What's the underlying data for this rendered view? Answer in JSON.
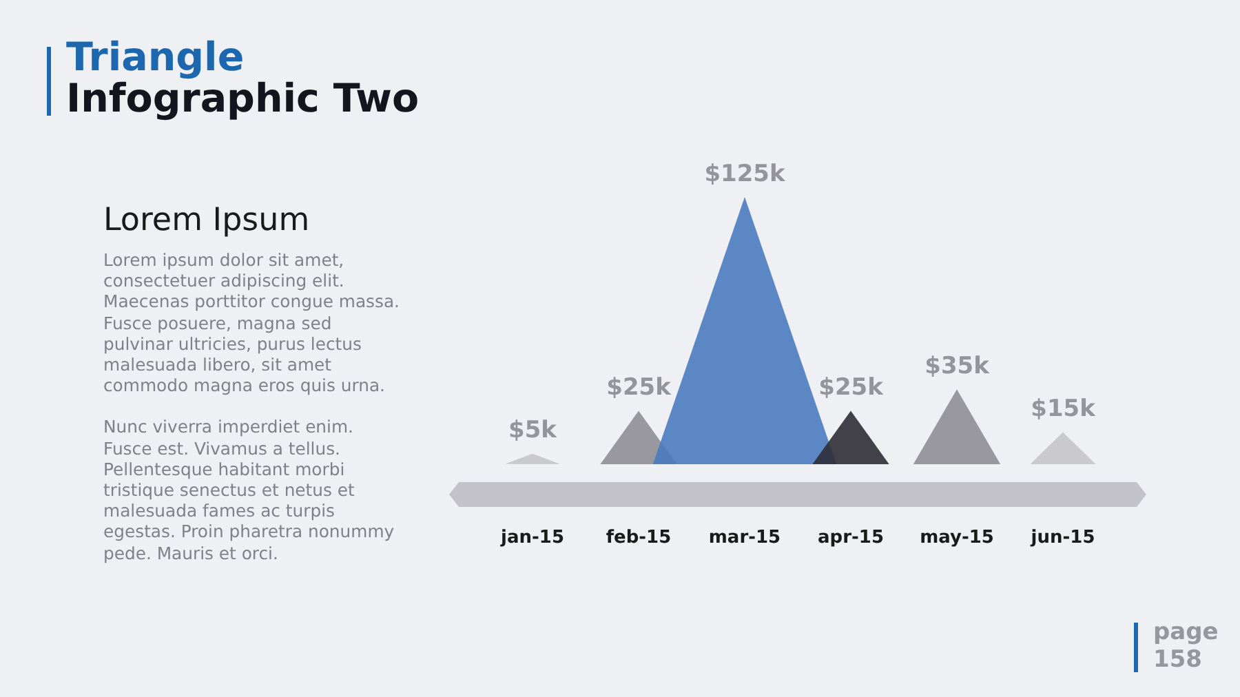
{
  "chart_data": {
    "type": "other",
    "title": "Triangle",
    "subtitle": "Infographic Two",
    "categories": [
      "jan-15",
      "feb-15",
      "mar-15",
      "apr-15",
      "may-15",
      "jun-15"
    ],
    "values": [
      5,
      25,
      125,
      25,
      35,
      15
    ],
    "colors": [
      "#c5c5ca",
      "#8f8e96",
      "#4a7bbf",
      "#2f2e36",
      "#8f8e96",
      "#c5c5ca"
    ],
    "value_labels": [
      "$5k",
      "$25k",
      "$125k",
      "$25k",
      "$35k",
      "$15k"
    ],
    "annotations": [
      "Lorem Ipsum",
      "Lorem ipsum dolor sit amet, consectetuer adipiscing elit. Maecenas porttitor congue massa. Fusce posuere, magna sed pulvinar ultricies, purus lectus malesuada libero, sit amet commodo magna eros quis urna.",
      "Nunc viverra imperdiet enim. Fusce est. Vivamus a tellus. Pellentesque habitant morbi tristique senectus et netus et malesuada fames ac turpis egestas. Proin pharetra nonummy pede. Mauris et orci.",
      "page 158"
    ]
  }
}
